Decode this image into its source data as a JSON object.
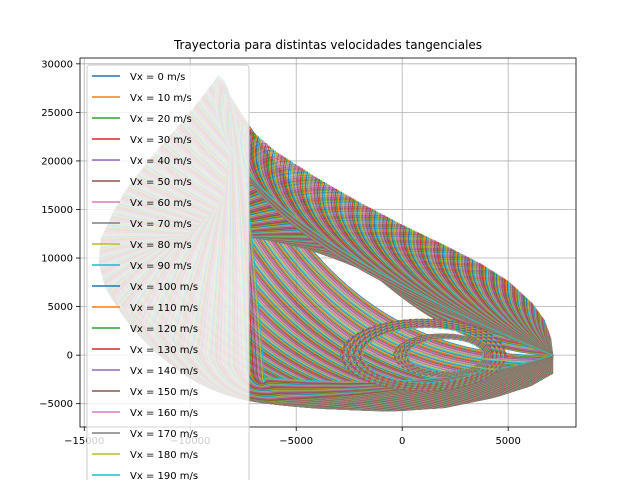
{
  "chart_data": {
    "type": "line",
    "title": "Trayectoria para distintas velocidades tangenciales",
    "xlabel": "",
    "ylabel": "",
    "xlim": [
      -15200,
      8200
    ],
    "ylim": [
      -7400,
      30600
    ],
    "xticks": [
      -15000,
      -10000,
      -5000,
      0,
      5000
    ],
    "yticks": [
      -5000,
      0,
      5000,
      10000,
      15000,
      20000,
      25000,
      30000
    ],
    "xtick_labels": [
      "−15000",
      "−10000",
      "−5000",
      "0",
      "5000"
    ],
    "ytick_labels": [
      "−5000",
      "0",
      "5000",
      "10000",
      "15000",
      "20000",
      "25000",
      "30000"
    ],
    "grid": true,
    "legend_position": "upper-left",
    "series_count_estimate": 300,
    "series_color_cycle": [
      "#1f77b4",
      "#ff7f0e",
      "#2ca02c",
      "#d62728",
      "#9467bd",
      "#8c564b",
      "#e377c2",
      "#7f7f7f",
      "#bcbd22",
      "#17becf"
    ],
    "legend_entries": [
      "Vx = 0 m/s",
      "Vx = 10 m/s",
      "Vx = 20 m/s",
      "Vx = 30 m/s",
      "Vx = 40 m/s",
      "Vx = 50 m/s",
      "Vx = 60 m/s",
      "Vx = 70 m/s",
      "Vx = 80 m/s",
      "Vx = 90 m/s",
      "Vx = 100 m/s",
      "Vx = 110 m/s",
      "Vx = 120 m/s",
      "Vx = 130 m/s",
      "Vx = 140 m/s",
      "Vx = 150 m/s",
      "Vx = 160 m/s",
      "Vx = 170 m/s",
      "Vx = 180 m/s",
      "Vx = 190 m/s"
    ],
    "outer_envelope": {
      "x": [
        7100,
        7000,
        6700,
        6100,
        5000,
        3700,
        2000,
        0,
        -2000,
        -4000,
        -6000,
        -7800,
        -8700
      ],
      "y": [
        0,
        1800,
        3600,
        5400,
        7600,
        9400,
        11300,
        13400,
        15700,
        18200,
        21000,
        24400,
        28700
      ]
    },
    "shading_tips": {
      "x": [
        -8700,
        -9400,
        -10200,
        -11200,
        -12200,
        -13000,
        -13600,
        -14200,
        -14300,
        -14000,
        -12800,
        -10500,
        -8500,
        -6500
      ],
      "y": [
        28700,
        26700,
        24500,
        22000,
        19300,
        17000,
        14800,
        12000,
        9500,
        7000,
        4300,
        1200,
        -700,
        -2300
      ]
    },
    "lower_envelope": {
      "x": [
        7100,
        5500,
        4000,
        2000,
        0,
        -2000,
        -4000,
        -5500,
        -6500
      ],
      "y": [
        0,
        -3200,
        -4500,
        -5400,
        -5700,
        -5500,
        -5100,
        -4600,
        -2300
      ]
    },
    "inner_circles": [
      {
        "cx": 1000,
        "cy": 0,
        "r": 3900
      },
      {
        "cx": 1900,
        "cy": 0,
        "r": 2300
      }
    ]
  }
}
